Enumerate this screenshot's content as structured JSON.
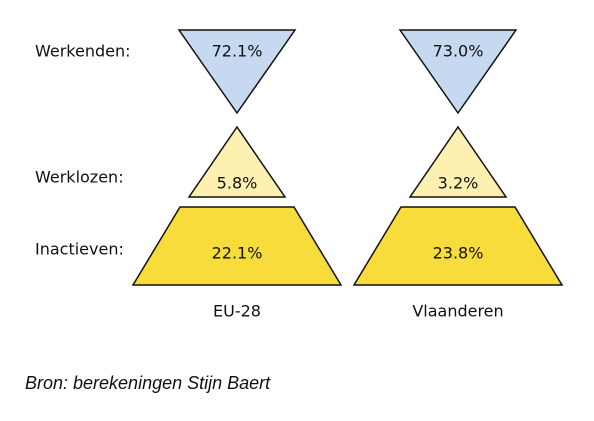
{
  "chart_data": {
    "type": "pyramid",
    "categories": [
      "Werkenden:",
      "Werklozen:",
      "Inactieven:"
    ],
    "colors": [
      "#c6d9f1",
      "#fdf0b0",
      "#f7dc3c"
    ],
    "series": [
      {
        "name": "EU-28",
        "values": [
          72.1,
          5.8,
          22.1
        ],
        "value_labels": [
          "72.1%",
          "5.8%",
          "22.1%"
        ]
      },
      {
        "name": "Vlaanderen",
        "values": [
          73.0,
          3.2,
          23.8
        ],
        "value_labels": [
          "73.0%",
          "3.2%",
          "23.8%"
        ]
      }
    ],
    "source": "Bron: berekeningen Stijn Baert"
  }
}
